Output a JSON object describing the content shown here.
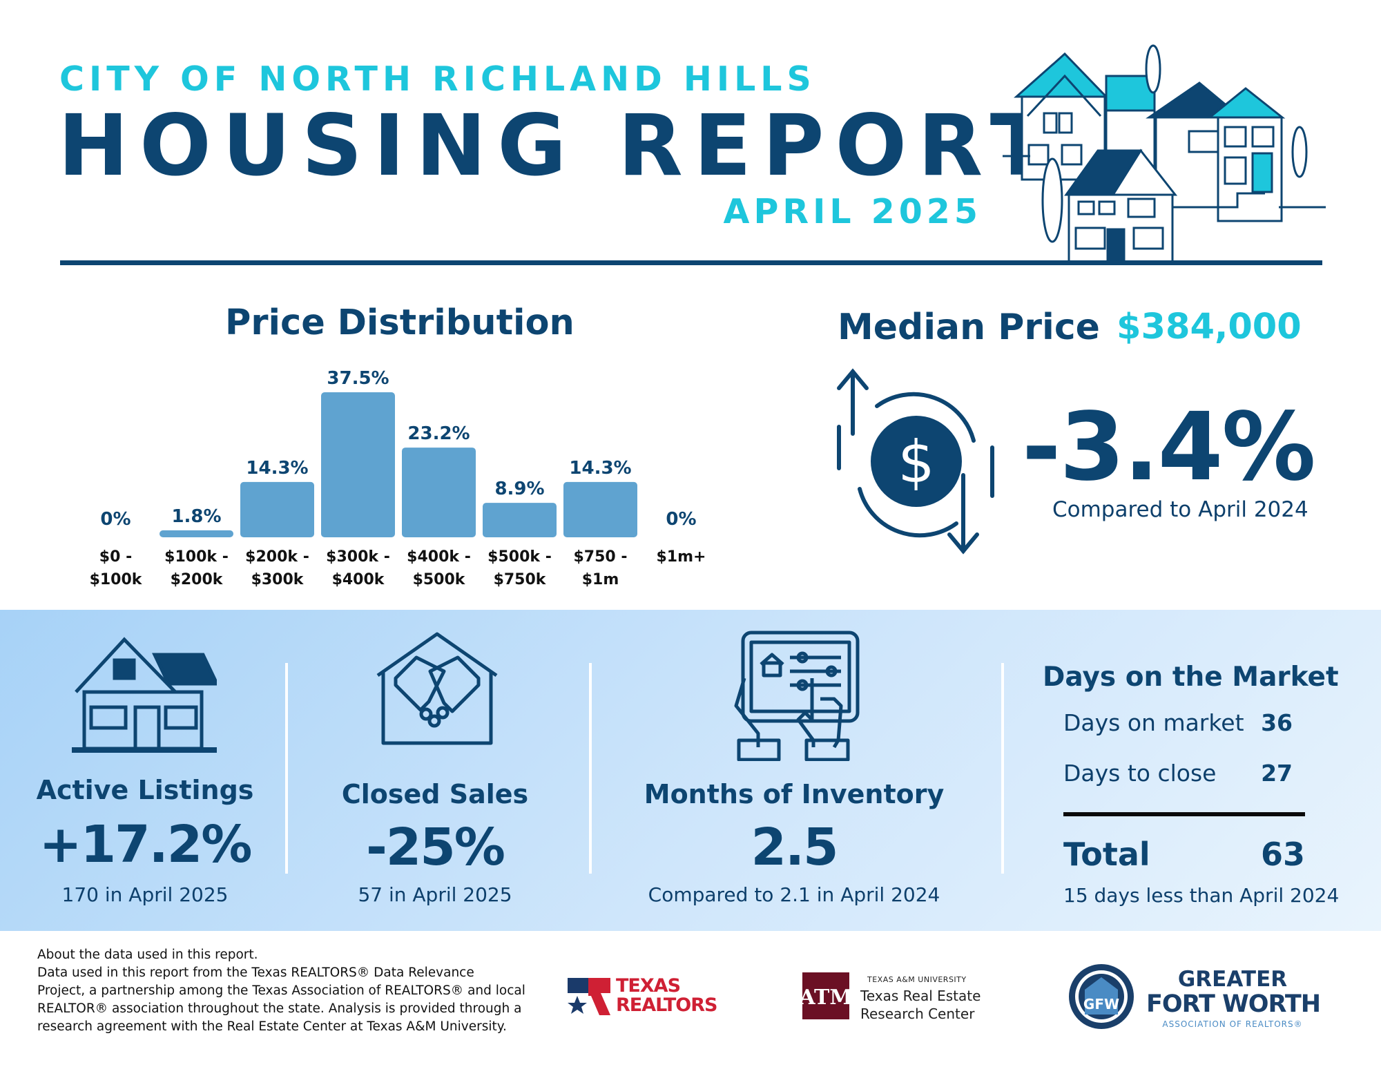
{
  "header": {
    "city": "CITY OF NORTH RICHLAND HILLS",
    "title": "HOUSING REPORT",
    "date": "APRIL 2025"
  },
  "price_distribution": {
    "title": "Price Distribution"
  },
  "chart_data": {
    "type": "bar",
    "title": "Price Distribution",
    "categories": [
      [
        "$0 -",
        "$100k"
      ],
      [
        "$100k -",
        "$200k"
      ],
      [
        "$200k -",
        "$300k"
      ],
      [
        "$300k -",
        "$400k"
      ],
      [
        "$400k -",
        "$500k"
      ],
      [
        "$500k -",
        "$750k"
      ],
      [
        "$750 -",
        "$1m"
      ],
      [
        "$1m+"
      ]
    ],
    "values": [
      0,
      1.8,
      14.3,
      37.5,
      23.2,
      8.9,
      14.3,
      0
    ],
    "value_labels": [
      "0%",
      "1.8%",
      "14.3%",
      "37.5%",
      "23.2%",
      "8.9%",
      "14.3%",
      "0%"
    ],
    "ylim": [
      0,
      37.5
    ],
    "bar_color": "#5fa3d0",
    "grid": false
  },
  "median": {
    "label": "Median Price",
    "value": "$384,000",
    "change": "-3.4%",
    "compare": "Compared to April 2024"
  },
  "stats": {
    "active_listings": {
      "label": "Active Listings",
      "value": "+17.2%",
      "sub": "170 in April 2025"
    },
    "closed_sales": {
      "label": "Closed Sales",
      "value": "-25%",
      "sub": "57 in April 2025"
    },
    "inventory": {
      "label": "Months of Inventory",
      "value": "2.5",
      "sub": "Compared to 2.1 in April 2024"
    },
    "days_on_market": {
      "title": "Days on the Market",
      "rows": [
        {
          "label": "Days on market",
          "value": "36"
        },
        {
          "label": "Days to close",
          "value": "27"
        }
      ],
      "total_label": "Total",
      "total_value": "63",
      "sub": "15 days less than April 2024"
    }
  },
  "footer": {
    "lines": [
      "About the data used in this report.",
      "Data used in this report from the Texas REALTORS® Data Relevance",
      "Project, a partnership among the Texas Association of REALTORS® and local",
      "REALTOR® association throughout the state. Analysis is provided through a",
      "research agreement with the Real Estate Center at Texas A&M University."
    ],
    "texas_realtors": {
      "line1": "TEXAS",
      "line2": "REALTORS"
    },
    "tamu": {
      "small": "TEXAS A&M UNIVERSITY",
      "line1": "Texas Real Estate",
      "line2": "Research Center"
    },
    "gfw": {
      "line1": "GREATER",
      "line2": "FORT WORTH",
      "line3": "ASSOCIATION OF REALTORS®"
    }
  },
  "colors": {
    "navy": "#0d4571",
    "cyan": "#1ec6dc",
    "bar": "#5fa3d0",
    "texas_red": "#cf2034",
    "tamu_maroon": "#6b1024"
  }
}
